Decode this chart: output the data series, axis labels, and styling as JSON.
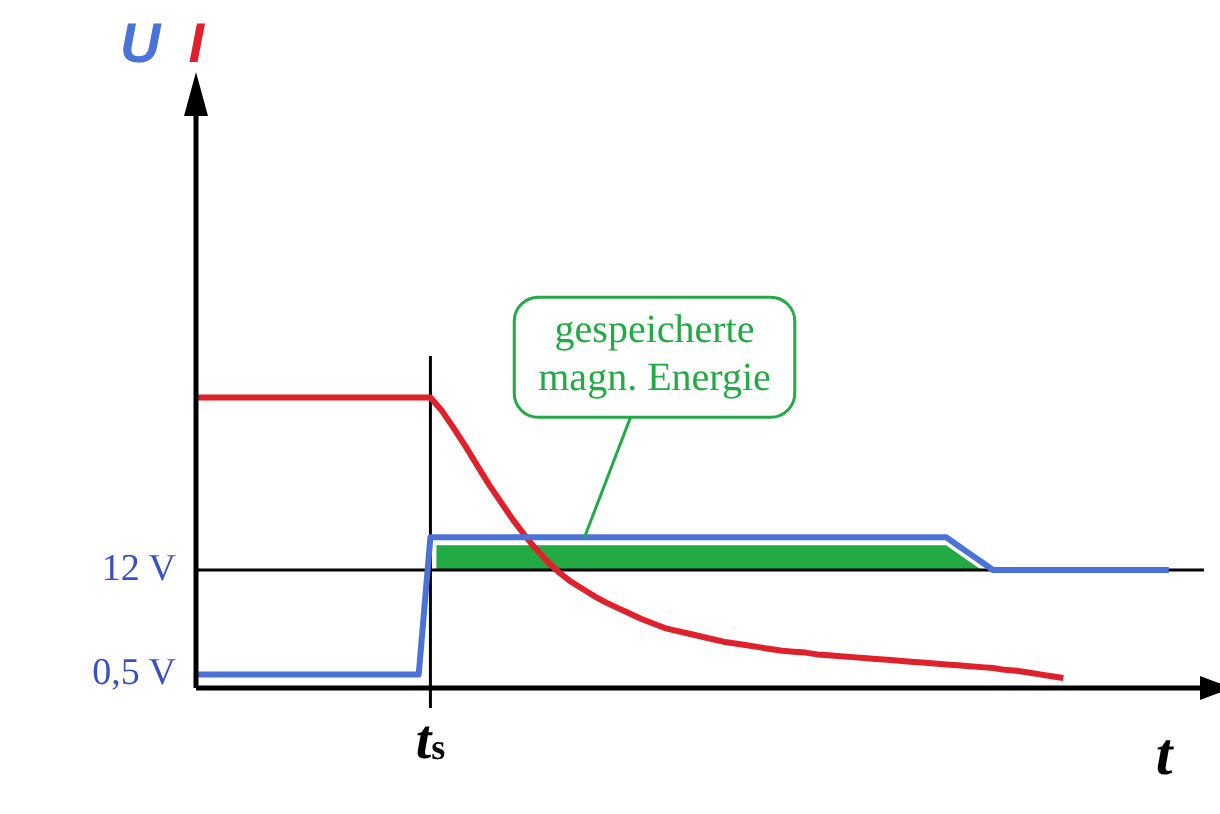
{
  "chart_data": {
    "type": "line",
    "xlabel": "t",
    "ylim": [
      -1,
      62
    ],
    "categories": [
      null,
      null,
      null,
      null,
      null,
      null,
      null,
      null,
      null,
      null,
      null,
      null,
      null,
      null,
      null,
      null,
      null,
      null,
      null,
      null,
      "t$_{s}$",
      null,
      null,
      null,
      null,
      null,
      null,
      null,
      null,
      null,
      null,
      null,
      null,
      null,
      null,
      null,
      null,
      null,
      null,
      null,
      null,
      null,
      null,
      null,
      null,
      null,
      null,
      null,
      null,
      null,
      null,
      null,
      null,
      null,
      null,
      null,
      null,
      null,
      null,
      null,
      null,
      null,
      null,
      null,
      null,
      null,
      null,
      null,
      null,
      null,
      null,
      null,
      null,
      null,
      null,
      null,
      null,
      null,
      null,
      null,
      null,
      null,
      null,
      null,
      null,
      null,
      null
    ],
    "yticks": [
      {
        "value": 0.5,
        "label": "0,5 V"
      },
      {
        "value": 12,
        "label": "12 V"
      }
    ],
    "grid": false,
    "marker": "none",
    "line_style": "solid",
    "series": [
      {
        "name": "U",
        "color": "#4a72d8",
        "values": [
          0.5,
          0.5,
          0.5,
          0.5,
          0.5,
          0.5,
          0.5,
          0.5,
          0.5,
          0.5,
          0.5,
          0.5,
          0.5,
          0.5,
          0.5,
          0.5,
          0.5,
          0.5,
          0.5,
          0.5,
          15.6,
          15.6,
          15.6,
          15.6,
          15.6,
          15.6,
          15.6,
          15.6,
          15.6,
          15.6,
          15.6,
          15.6,
          15.6,
          15.6,
          15.6,
          15.6,
          15.6,
          15.6,
          15.6,
          15.6,
          15.6,
          15.6,
          15.6,
          15.6,
          15.6,
          15.6,
          15.6,
          15.6,
          15.6,
          15.6,
          15.6,
          15.6,
          15.6,
          15.6,
          15.6,
          15.6,
          15.6,
          15.6,
          15.6,
          15.6,
          15.6,
          15.6,
          15.6,
          15.6,
          15.6,
          14.7,
          13.8,
          12.9,
          12,
          12,
          12,
          12,
          12,
          12,
          12,
          12,
          12,
          12,
          12,
          12,
          12,
          12,
          12,
          12,
          null,
          null,
          null
        ]
      },
      {
        "name": "I",
        "color": "#e0202a",
        "values": [
          31,
          31,
          31,
          31,
          31,
          31,
          31,
          31,
          31,
          31,
          31,
          31,
          31,
          31,
          31,
          31,
          31,
          31,
          31,
          31,
          31,
          29.5,
          27.6,
          25.6,
          23.5,
          21.4,
          19.5,
          17.6,
          15.9,
          14.3,
          12.9,
          11.7,
          10.7,
          9.9,
          9.1,
          8.4,
          7.8,
          7.2,
          6.6,
          6.1,
          5.6,
          5.3,
          5,
          4.7,
          4.4,
          4.1,
          3.9,
          3.7,
          3.5,
          3.3,
          3.1,
          3,
          2.9,
          2.7,
          2.6,
          2.5,
          2.4,
          2.3,
          2.2,
          2.1,
          2,
          1.9,
          1.8,
          1.7,
          1.6,
          1.5,
          1.4,
          1.3,
          1.2,
          1,
          0.9,
          0.7,
          0.5,
          0.3,
          0.1,
          null,
          null,
          null,
          null,
          null,
          null,
          null,
          null,
          null,
          null,
          null,
          null
        ]
      }
    ],
    "ref_lines": [
      {
        "axis": "y",
        "value": 12,
        "color": "#000000"
      }
    ],
    "annotations": [
      "gespeicherte\nmagn. Energie"
    ]
  }
}
